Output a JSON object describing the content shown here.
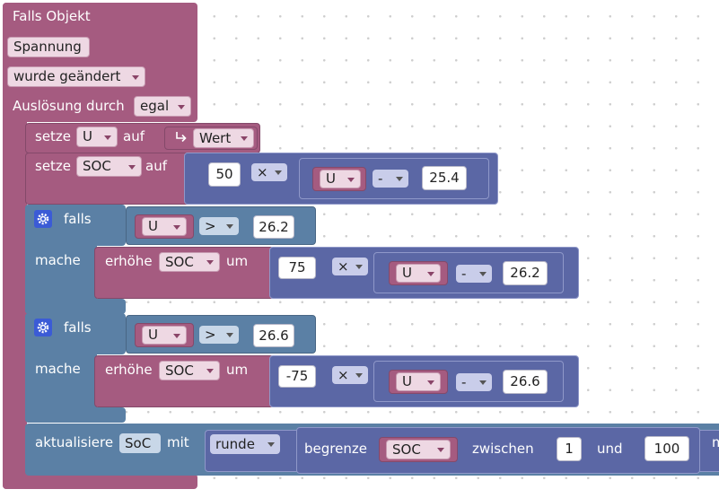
{
  "event": {
    "title": "Falls Objekt",
    "object": "Spannung",
    "trigger": "wurde geändert",
    "cause_label": "Auslösung durch",
    "cause": "egal"
  },
  "set_u": {
    "label": "setze",
    "variable": "U",
    "to": "auf",
    "value": "Wert"
  },
  "set_soc": {
    "label": "setze",
    "variable": "SOC",
    "to": "auf",
    "factor": "50",
    "operator": "×",
    "minuend": "U",
    "minus": "-",
    "subtrahend": "25.4"
  },
  "conditions": [
    {
      "if": "falls",
      "variable": "U",
      "comparison": ">",
      "threshold": "26.2",
      "do": "mache",
      "action": "erhöhe",
      "target": "SOC",
      "by": "um",
      "factor": "75",
      "operator": "×",
      "minuend": "U",
      "minus": "-",
      "subtrahend": "26.2"
    },
    {
      "if": "falls",
      "variable": "U",
      "comparison": ">",
      "threshold": "26.6",
      "do": "mache",
      "action": "erhöhe",
      "target": "SOC",
      "by": "um",
      "factor": "-75",
      "operator": "×",
      "minuend": "U",
      "minus": "-",
      "subtrahend": "26.6"
    }
  ],
  "update": {
    "label": "aktualisiere",
    "state": "SoC",
    "with": "mit",
    "function": "runde",
    "clamp": "begrenze",
    "value": "SOC",
    "between": "zwischen",
    "min": "1",
    "and": "und",
    "max": "100",
    "overflow": "m"
  }
}
